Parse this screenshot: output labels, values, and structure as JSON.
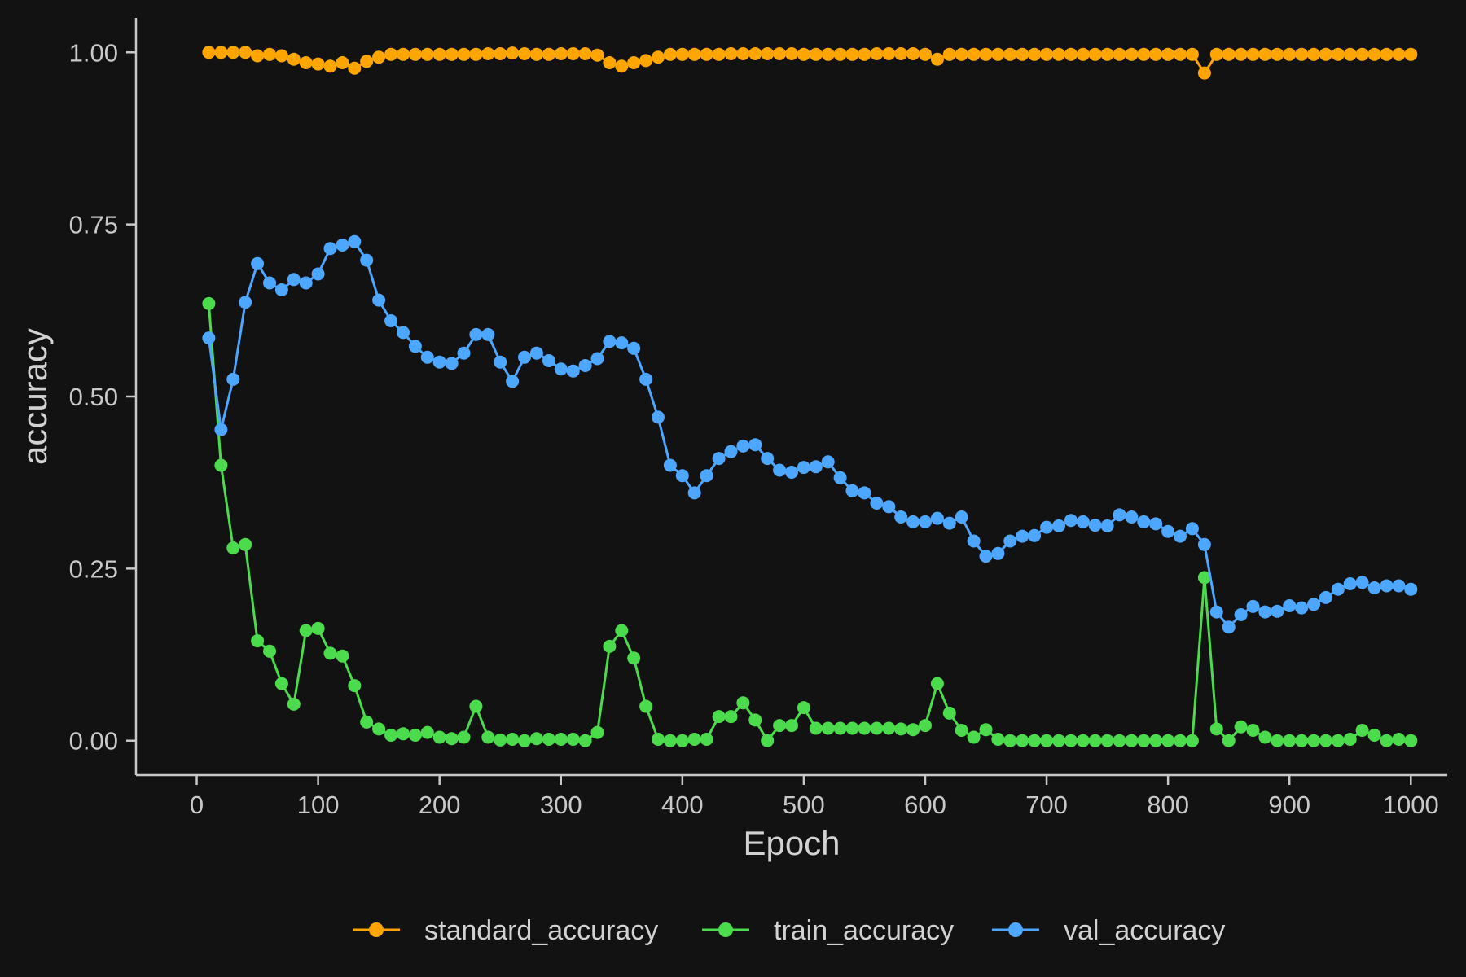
{
  "chart_data": {
    "type": "line",
    "title": "",
    "xlabel": "Epoch",
    "ylabel": "accuracy",
    "xlim": [
      -50,
      1030
    ],
    "ylim": [
      -0.05,
      1.05
    ],
    "x_ticks": [
      0,
      100,
      200,
      300,
      400,
      500,
      600,
      700,
      800,
      900,
      1000
    ],
    "y_ticks": [
      0.0,
      0.25,
      0.5,
      0.75,
      1.0
    ],
    "x_tick_labels": [
      "0",
      "100",
      "200",
      "300",
      "400",
      "500",
      "600",
      "700",
      "800",
      "900",
      "1000"
    ],
    "y_tick_labels": [
      "0.00",
      "0.25",
      "0.50",
      "0.75",
      "1.00"
    ],
    "grid": false,
    "legend_position": "bottom",
    "x": [
      10,
      20,
      30,
      40,
      50,
      60,
      70,
      80,
      90,
      100,
      110,
      120,
      130,
      140,
      150,
      160,
      170,
      180,
      190,
      200,
      210,
      220,
      230,
      240,
      250,
      260,
      270,
      280,
      290,
      300,
      310,
      320,
      330,
      340,
      350,
      360,
      370,
      380,
      390,
      400,
      410,
      420,
      430,
      440,
      450,
      460,
      470,
      480,
      490,
      500,
      510,
      520,
      530,
      540,
      550,
      560,
      570,
      580,
      590,
      600,
      610,
      620,
      630,
      640,
      650,
      660,
      670,
      680,
      690,
      700,
      710,
      720,
      730,
      740,
      750,
      760,
      770,
      780,
      790,
      800,
      810,
      820,
      830,
      840,
      850,
      860,
      870,
      880,
      890,
      900,
      910,
      920,
      930,
      940,
      950,
      960,
      970,
      980,
      990,
      1000
    ],
    "series": [
      {
        "name": "standard_accuracy",
        "color": "#FFA500",
        "values": [
          1.0,
          1.0,
          1.0,
          1.0,
          0.995,
          0.997,
          0.995,
          0.99,
          0.985,
          0.983,
          0.98,
          0.985,
          0.977,
          0.987,
          0.993,
          0.997,
          0.997,
          0.997,
          0.997,
          0.997,
          0.997,
          0.997,
          0.997,
          0.998,
          0.998,
          0.999,
          0.998,
          0.997,
          0.997,
          0.998,
          0.998,
          0.998,
          0.996,
          0.985,
          0.98,
          0.985,
          0.988,
          0.993,
          0.997,
          0.997,
          0.997,
          0.997,
          0.997,
          0.998,
          0.998,
          0.998,
          0.998,
          0.998,
          0.998,
          0.997,
          0.997,
          0.997,
          0.997,
          0.997,
          0.997,
          0.998,
          0.998,
          0.998,
          0.998,
          0.997,
          0.99,
          0.997,
          0.997,
          0.997,
          0.997,
          0.997,
          0.997,
          0.997,
          0.997,
          0.997,
          0.997,
          0.997,
          0.997,
          0.997,
          0.997,
          0.997,
          0.997,
          0.997,
          0.997,
          0.997,
          0.997,
          0.997,
          0.97,
          0.997,
          0.997,
          0.997,
          0.997,
          0.997,
          0.997,
          0.997,
          0.997,
          0.997,
          0.997,
          0.997,
          0.997,
          0.997,
          0.997,
          0.997,
          0.997,
          0.997
        ]
      },
      {
        "name": "train_accuracy",
        "color": "#4CDB4C",
        "values": [
          0.635,
          0.4,
          0.28,
          0.285,
          0.145,
          0.13,
          0.083,
          0.053,
          0.16,
          0.163,
          0.127,
          0.123,
          0.08,
          0.027,
          0.017,
          0.008,
          0.01,
          0.008,
          0.012,
          0.005,
          0.003,
          0.005,
          0.05,
          0.005,
          0.001,
          0.002,
          0.0,
          0.003,
          0.002,
          0.002,
          0.002,
          0.0,
          0.012,
          0.137,
          0.16,
          0.12,
          0.05,
          0.002,
          0.0,
          0.0,
          0.002,
          0.002,
          0.035,
          0.035,
          0.055,
          0.03,
          0.0,
          0.022,
          0.022,
          0.048,
          0.018,
          0.018,
          0.018,
          0.018,
          0.018,
          0.018,
          0.018,
          0.017,
          0.016,
          0.022,
          0.083,
          0.04,
          0.015,
          0.005,
          0.016,
          0.002,
          0.0,
          0.0,
          0.0,
          0.0,
          0.0,
          0.0,
          0.0,
          0.0,
          0.0,
          0.0,
          0.0,
          0.0,
          0.0,
          0.0,
          0.0,
          0.0,
          0.237,
          0.017,
          0.0,
          0.02,
          0.015,
          0.005,
          0.0,
          0.0,
          0.0,
          0.0,
          0.0,
          0.0,
          0.002,
          0.015,
          0.008,
          0.0,
          0.002,
          0.0
        ]
      },
      {
        "name": "val_accuracy",
        "color": "#4DA6FF",
        "values": [
          0.585,
          0.452,
          0.525,
          0.637,
          0.693,
          0.665,
          0.655,
          0.67,
          0.665,
          0.678,
          0.715,
          0.72,
          0.725,
          0.698,
          0.64,
          0.61,
          0.593,
          0.573,
          0.557,
          0.55,
          0.548,
          0.563,
          0.59,
          0.59,
          0.55,
          0.522,
          0.557,
          0.563,
          0.552,
          0.54,
          0.537,
          0.545,
          0.555,
          0.58,
          0.578,
          0.57,
          0.525,
          0.47,
          0.4,
          0.385,
          0.36,
          0.385,
          0.41,
          0.42,
          0.428,
          0.43,
          0.41,
          0.393,
          0.39,
          0.397,
          0.398,
          0.405,
          0.382,
          0.363,
          0.36,
          0.345,
          0.34,
          0.325,
          0.318,
          0.318,
          0.323,
          0.316,
          0.325,
          0.29,
          0.268,
          0.272,
          0.29,
          0.297,
          0.298,
          0.31,
          0.312,
          0.32,
          0.318,
          0.313,
          0.312,
          0.328,
          0.325,
          0.318,
          0.315,
          0.304,
          0.297,
          0.308,
          0.285,
          0.187,
          0.165,
          0.183,
          0.195,
          0.187,
          0.188,
          0.196,
          0.193,
          0.198,
          0.208,
          0.22,
          0.228,
          0.23,
          0.222,
          0.225,
          0.225,
          0.22
        ]
      }
    ]
  }
}
